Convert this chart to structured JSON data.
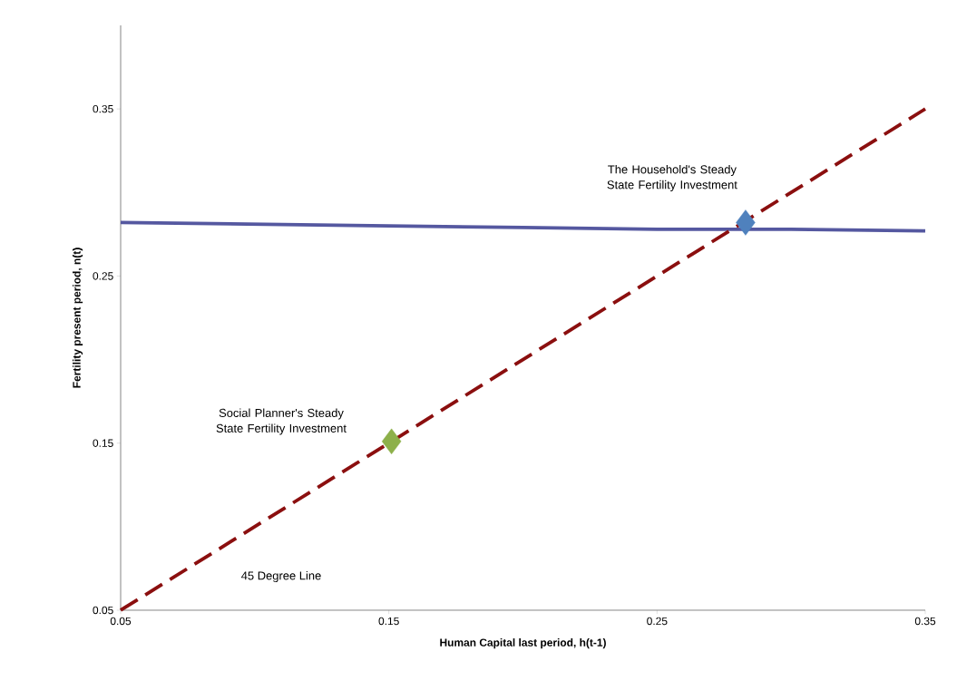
{
  "chart_data": {
    "type": "line",
    "xlabel": "Human Capital last period, h(t-1)",
    "ylabel": "Fertility present period, n(t)",
    "xlim": [
      0.05,
      0.35
    ],
    "ylim": [
      0.05,
      0.4
    ],
    "xticks": [
      0.05,
      0.15,
      0.25,
      0.35
    ],
    "yticks": [
      0.05,
      0.15,
      0.25,
      0.35
    ],
    "series": [
      {
        "color": "#5558a0",
        "x": [
          0.05,
          0.1,
          0.15,
          0.2,
          0.25,
          0.3,
          0.35
        ],
        "values": [
          0.282,
          0.281,
          0.28,
          0.279,
          0.278,
          0.278,
          0.277
        ]
      },
      {
        "color": "#8b0f0f",
        "line_style": "dashed",
        "x": [
          0.05,
          0.35
        ],
        "values": [
          0.05,
          0.35
        ]
      },
      {
        "type": "scatter",
        "color": "#8db04a",
        "marker": "diamond",
        "x": [
          0.151
        ],
        "values": [
          0.151
        ]
      },
      {
        "type": "scatter",
        "color": "#4f81bd",
        "marker": "diamond",
        "x": [
          0.283
        ],
        "values": [
          0.282
        ]
      }
    ],
    "annotations": [
      {
        "text": "The Household's Steady State Fertility Investment",
        "x": 0.283,
        "y": 0.282
      },
      "Social Planner's Steady State Fertility Investment",
      "45 Degree Line"
    ]
  }
}
